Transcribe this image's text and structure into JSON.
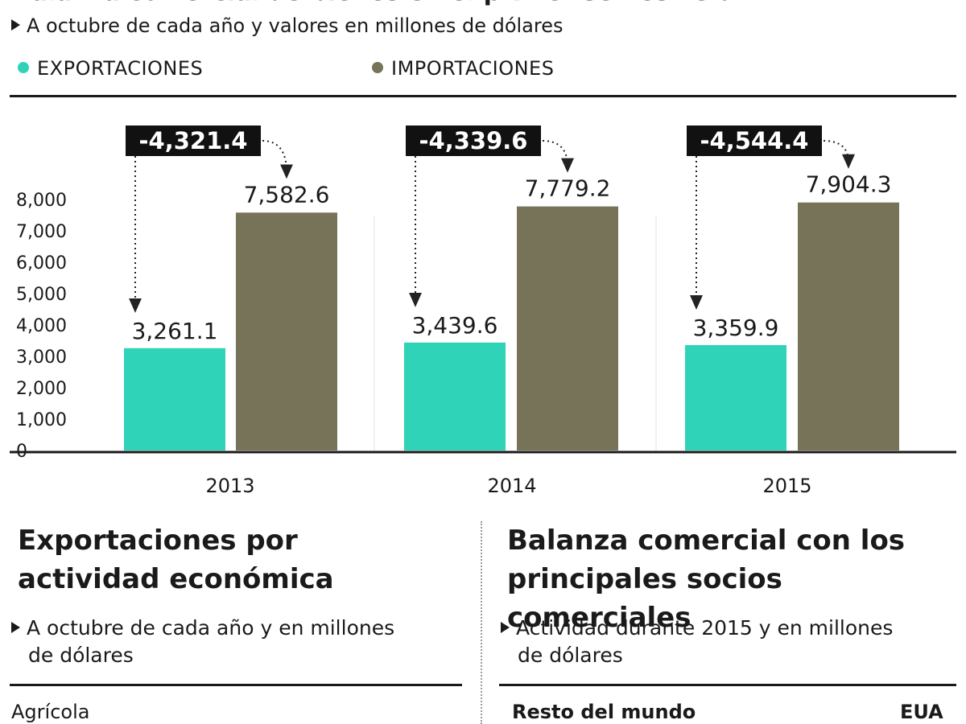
{
  "header": {
    "cut_title": "Balanza comercial de bienes en el primer semestre del periodo seguido",
    "subtitle": "A octubre de cada año y valores en millones de dólares"
  },
  "legend": {
    "exports": "EXPORTACIONES",
    "imports": "IMPORTACIONES"
  },
  "colors": {
    "exports": "#2fd3b8",
    "imports": "#767359",
    "label_box": "#111111"
  },
  "chart_data": {
    "type": "bar",
    "categories": [
      "2013",
      "2014",
      "2015"
    ],
    "series": [
      {
        "name": "EXPORTACIONES",
        "values": [
          3261.1,
          3439.6,
          3359.9
        ],
        "labels": [
          "3,261.1",
          "3,439.6",
          "3,359.9"
        ]
      },
      {
        "name": "IMPORTACIONES",
        "values": [
          7582.6,
          7779.2,
          7904.3
        ],
        "labels": [
          "7,582.6",
          "7,779.2",
          "7,904.3"
        ]
      }
    ],
    "balance_labels": [
      "-4,321.4",
      "-4,339.6",
      "-4,544.4"
    ],
    "ylim": [
      0,
      8000
    ],
    "yticks": [
      "0",
      "1,000",
      "2,000",
      "3,000",
      "4,000",
      "5,000",
      "6,000",
      "7,000",
      "8,000"
    ],
    "ytick_values": [
      0,
      1000,
      2000,
      3000,
      4000,
      5000,
      6000,
      7000,
      8000
    ],
    "grid": false,
    "legend_placement": "top-left"
  },
  "sections": {
    "left": {
      "title_line1": "Exportaciones por",
      "title_line2": "actividad económica",
      "sub_line1": "A octubre de cada año y en millones",
      "sub_line2": "de dólares",
      "first_row": "Agrícola"
    },
    "right": {
      "title_line1": "Balanza comercial con los",
      "title_line2": "principales socios comerciales",
      "sub_line1": "Actividad durante 2015 y en millones",
      "sub_line2": "de dólares",
      "row_left": "Resto del mundo",
      "row_right": "EUA"
    }
  }
}
